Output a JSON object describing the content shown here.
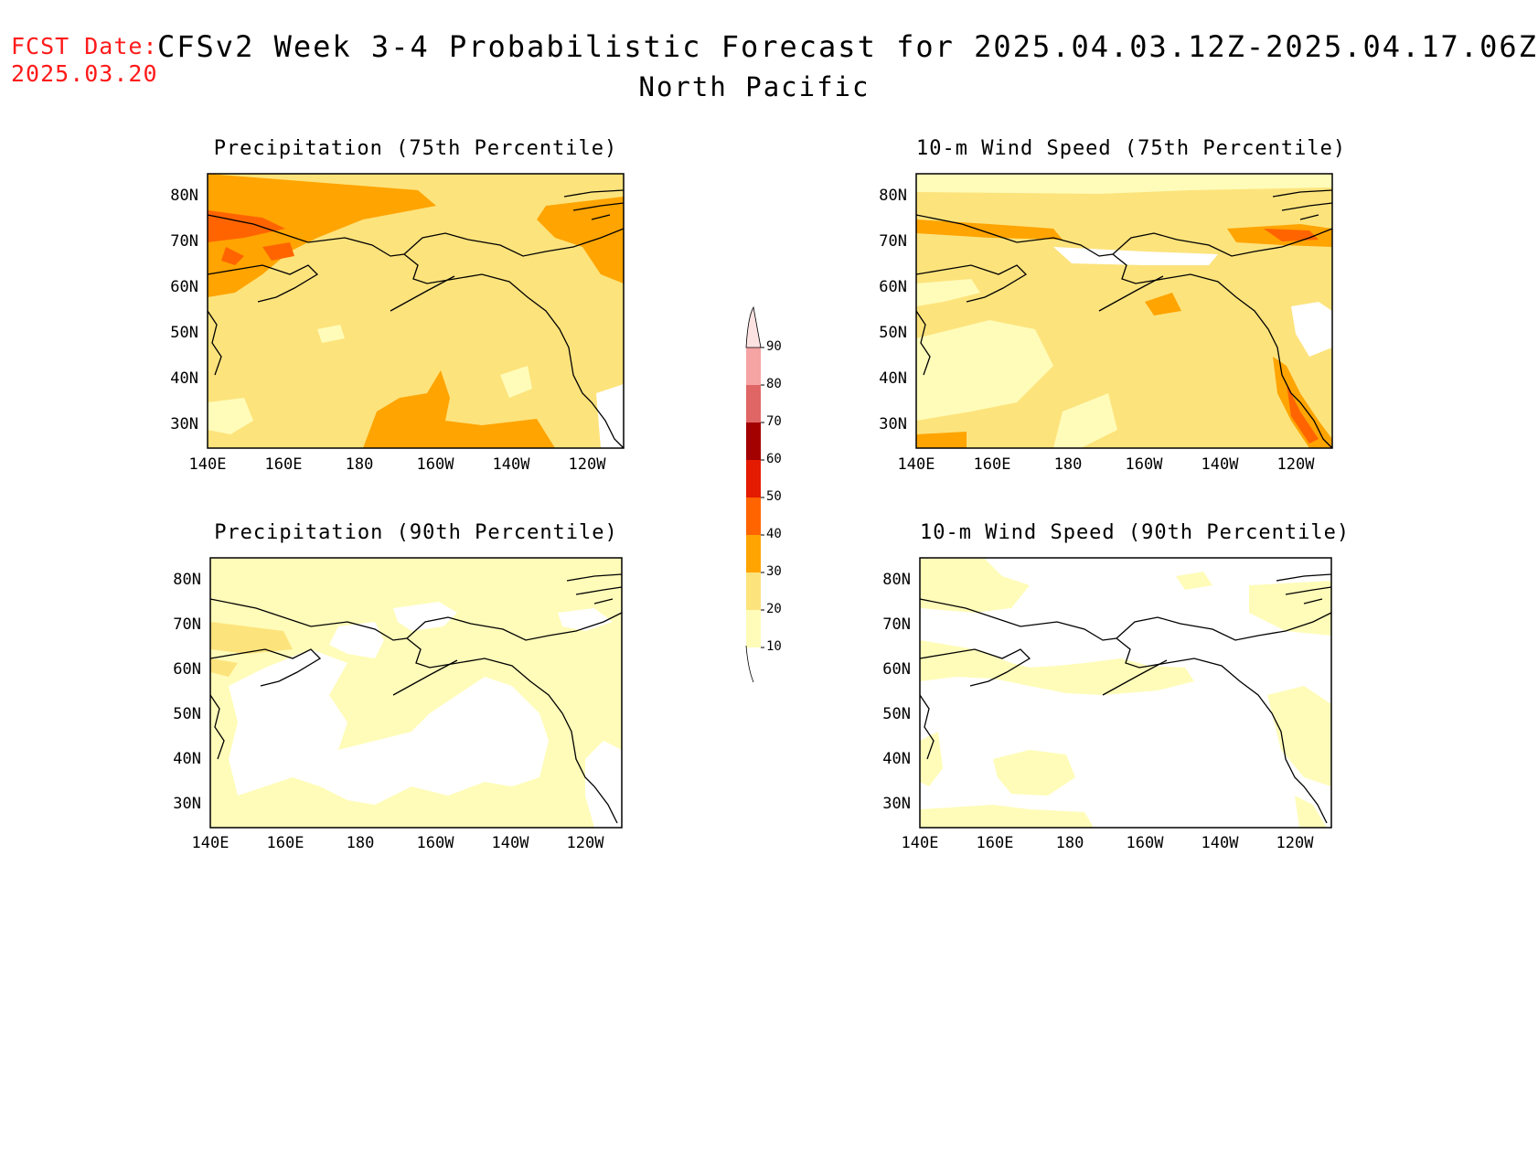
{
  "header": {
    "fcst_label": "FCST Date:",
    "fcst_date": "2025.03.20",
    "title": "CFSv2 Week 3-4 Probabilistic Forecast for 2025.04.03.12Z-2025.04.17.06Z",
    "subtitle": "North Pacific"
  },
  "axes": {
    "lat_ticks": [
      "80N",
      "70N",
      "60N",
      "50N",
      "40N",
      "30N"
    ],
    "lon_ticks": [
      "140E",
      "160E",
      "180",
      "160W",
      "140W",
      "120W"
    ]
  },
  "panels": [
    {
      "title": "Precipitation (75th Percentile)",
      "dominant_level": 20
    },
    {
      "title": "10-m Wind Speed (75th Percentile)",
      "dominant_level": 20
    },
    {
      "title": "Precipitation (90th Percentile)",
      "dominant_level": 10
    },
    {
      "title": "10-m Wind Speed (90th Percentile)",
      "dominant_level": 0
    }
  ],
  "colorbar": {
    "labels": [
      "90",
      "80",
      "70",
      "60",
      "50",
      "40",
      "30",
      "20",
      "10"
    ],
    "colors": [
      "#f6a3a3",
      "#e06666",
      "#a30000",
      "#e41b00",
      "#ff6400",
      "#ffa400",
      "#fde37c",
      "#fffcb9"
    ]
  }
}
